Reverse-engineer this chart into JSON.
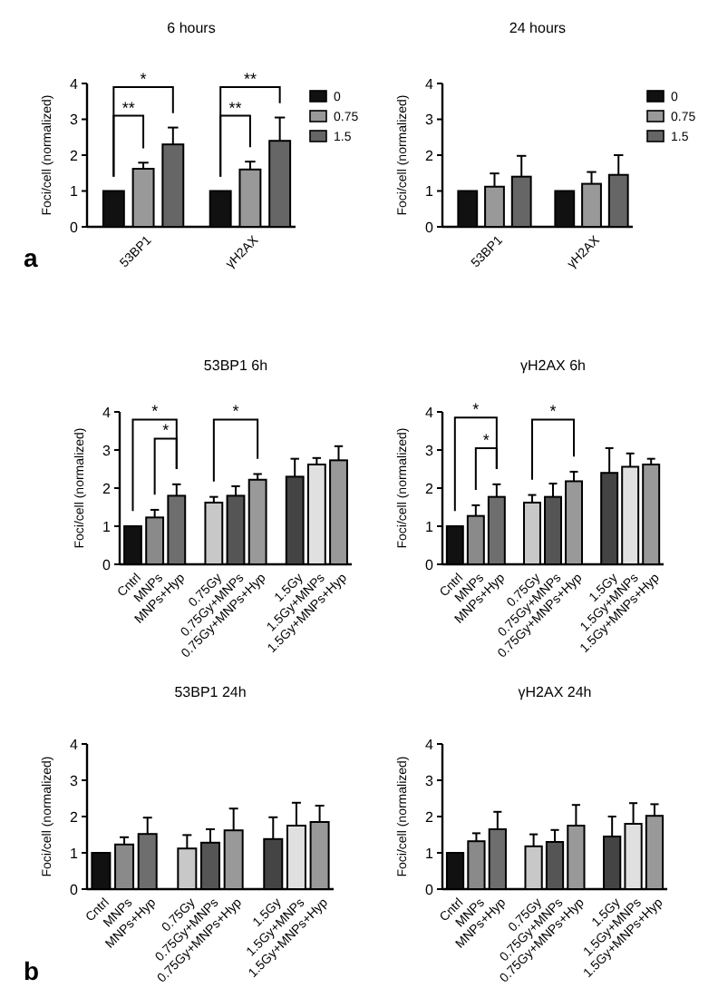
{
  "chart_data": [
    {
      "type": "bar",
      "title": "6 hours",
      "ylabel": "Foci/cell (normalized)",
      "categories": [
        "53BP1",
        "γH2AX"
      ],
      "ylim": [
        0,
        4
      ],
      "yticks": [
        0,
        1,
        2,
        3,
        4
      ],
      "legend": "right",
      "series": [
        {
          "name": "0",
          "color": "#111111",
          "values": [
            1,
            1
          ]
        },
        {
          "name": "0.75",
          "color": "#999999",
          "values": [
            1.62,
            1.6
          ],
          "errors": [
            0.17,
            0.22
          ]
        },
        {
          "name": "1.5",
          "color": "#666666",
          "values": [
            2.3,
            2.4
          ],
          "errors": [
            0.47,
            0.65
          ]
        }
      ],
      "annotations": [
        "*",
        "**",
        "**",
        "**",
        "a"
      ]
    },
    {
      "type": "bar",
      "title": "24 hours",
      "ylabel": "Foci/cell (normalized)",
      "categories": [
        "53BP1",
        "γH2AX"
      ],
      "ylim": [
        0,
        4
      ],
      "yticks": [
        0,
        1,
        2,
        3,
        4
      ],
      "legend": "right",
      "series": [
        {
          "name": "0",
          "color": "#111111",
          "values": [
            1,
            1
          ]
        },
        {
          "name": "0.75",
          "color": "#999999",
          "values": [
            1.12,
            1.2
          ],
          "errors": [
            0.37,
            0.33
          ]
        },
        {
          "name": "1.5",
          "color": "#666666",
          "values": [
            1.4,
            1.45
          ],
          "errors": [
            0.58,
            0.55
          ]
        }
      ]
    },
    {
      "type": "bar",
      "title": "53BP1 6h",
      "ylabel": "Foci/cell (normalized)",
      "categories": [
        "Cntrl",
        "MNPs",
        "MNPs+Hyp",
        "0.75Gy",
        "0.75Gy+MNPs",
        "0.75Gy+MNPs+Hyp",
        "1.5Gy",
        "1.5Gy+MNPs",
        "1.5Gy+MNPs+Hyp"
      ],
      "ylim": [
        0,
        4
      ],
      "yticks": [
        0,
        1,
        2,
        3,
        4
      ],
      "values": [
        1,
        1.23,
        1.8,
        1.62,
        1.8,
        2.22,
        2.3,
        2.62,
        2.73
      ],
      "errors": [
        null,
        0.2,
        0.3,
        0.15,
        0.25,
        0.15,
        0.47,
        0.17,
        0.37
      ],
      "colors": [
        "#111111",
        "#8a8a8a",
        "#6e6e6e",
        "#c8c8c8",
        "#555555",
        "#999999",
        "#444444",
        "#e0e0e0",
        "#999999"
      ],
      "annotations": [
        "*",
        "*",
        "*"
      ]
    },
    {
      "type": "bar",
      "title": "γH2AX 6h",
      "ylabel": "Foci/cell (normalized)",
      "categories": [
        "Cntrl",
        "MNPs",
        "MNPs+Hyp",
        "0.75Gy",
        "0.75Gy+MNPs",
        "0.75Gy+MNPs+Hyp",
        "1.5Gy",
        "1.5Gy+MNPs",
        "1.5Gy+MNPs+Hyp"
      ],
      "ylim": [
        0,
        4
      ],
      "yticks": [
        0,
        1,
        2,
        3,
        4
      ],
      "values": [
        1,
        1.27,
        1.77,
        1.62,
        1.77,
        2.18,
        2.4,
        2.56,
        2.62
      ],
      "errors": [
        null,
        0.28,
        0.33,
        0.2,
        0.35,
        0.25,
        0.65,
        0.35,
        0.15
      ],
      "colors": [
        "#111111",
        "#8a8a8a",
        "#6e6e6e",
        "#c8c8c8",
        "#555555",
        "#999999",
        "#444444",
        "#e0e0e0",
        "#999999"
      ],
      "annotations": [
        "*",
        "*",
        "*"
      ]
    },
    {
      "type": "bar",
      "title": "53BP1 24h",
      "ylabel": "Foci/cell (normalized)",
      "categories": [
        "Cntrl",
        "MNPs",
        "MNPs+Hyp",
        "0.75Gy",
        "0.75Gy+MNPs",
        "0.75Gy+MNPs+Hyp",
        "1.5Gy",
        "1.5Gy+MNPs",
        "1.5Gy+MNPs+Hyp"
      ],
      "ylim": [
        0,
        4
      ],
      "yticks": [
        0,
        1,
        2,
        3,
        4
      ],
      "values": [
        1,
        1.23,
        1.52,
        1.12,
        1.28,
        1.62,
        1.38,
        1.75,
        1.85
      ],
      "errors": [
        null,
        0.2,
        0.45,
        0.37,
        0.37,
        0.6,
        0.6,
        0.63,
        0.45
      ],
      "colors": [
        "#111111",
        "#8a8a8a",
        "#6e6e6e",
        "#c8c8c8",
        "#555555",
        "#999999",
        "#444444",
        "#e0e0e0",
        "#999999"
      ],
      "annotations": [
        "b"
      ]
    },
    {
      "type": "bar",
      "title": "γH2AX 24h",
      "ylabel": "Foci/cell (normalized)",
      "categories": [
        "Cntrl",
        "MNPs",
        "MNPs+Hyp",
        "0.75Gy",
        "0.75Gy+MNPs",
        "0.75Gy+MNPs+Hyp",
        "1.5Gy",
        "1.5Gy+MNPs",
        "1.5Gy+MNPs+Hyp"
      ],
      "ylim": [
        0,
        4
      ],
      "yticks": [
        0,
        1,
        2,
        3,
        4
      ],
      "values": [
        1,
        1.32,
        1.65,
        1.18,
        1.3,
        1.75,
        1.45,
        1.8,
        2.02
      ],
      "errors": [
        null,
        0.22,
        0.48,
        0.33,
        0.33,
        0.57,
        0.55,
        0.57,
        0.32
      ],
      "colors": [
        "#111111",
        "#8a8a8a",
        "#6e6e6e",
        "#c8c8c8",
        "#555555",
        "#999999",
        "#444444",
        "#e0e0e0",
        "#999999"
      ]
    }
  ]
}
